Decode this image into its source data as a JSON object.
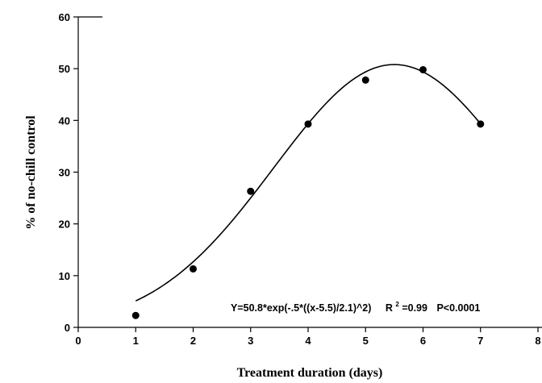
{
  "chart_data": {
    "type": "scatter",
    "xlabel": "Treatment duration (days)",
    "ylabel": "% of no-chill control",
    "xlim": [
      0,
      8
    ],
    "ylim": [
      0,
      60
    ],
    "x_ticks": [
      0,
      1,
      2,
      3,
      4,
      5,
      6,
      7,
      8
    ],
    "y_ticks": [
      0,
      10,
      20,
      30,
      40,
      50,
      60
    ],
    "grid": false,
    "series": [
      {
        "x": [
          1,
          2,
          3,
          4,
          5,
          6,
          7
        ],
        "y": [
          2.3,
          11.3,
          26.3,
          39.3,
          47.8,
          49.8,
          39.3
        ],
        "marker": "filled-circle",
        "color": "#000000"
      }
    ],
    "fit": {
      "model": "gaussian",
      "a": 50.8,
      "x0": 5.5,
      "b": 2.1,
      "x_range": [
        1,
        7
      ],
      "color": "#000000"
    },
    "annotation": {
      "equation": "Y=50.8*exp(-.5*((x-5.5)/2.1)^2)",
      "r2_prefix": "R",
      "r2_sup": "2",
      "r2_value": "=0.99",
      "p_value": "P<0.0001"
    }
  }
}
